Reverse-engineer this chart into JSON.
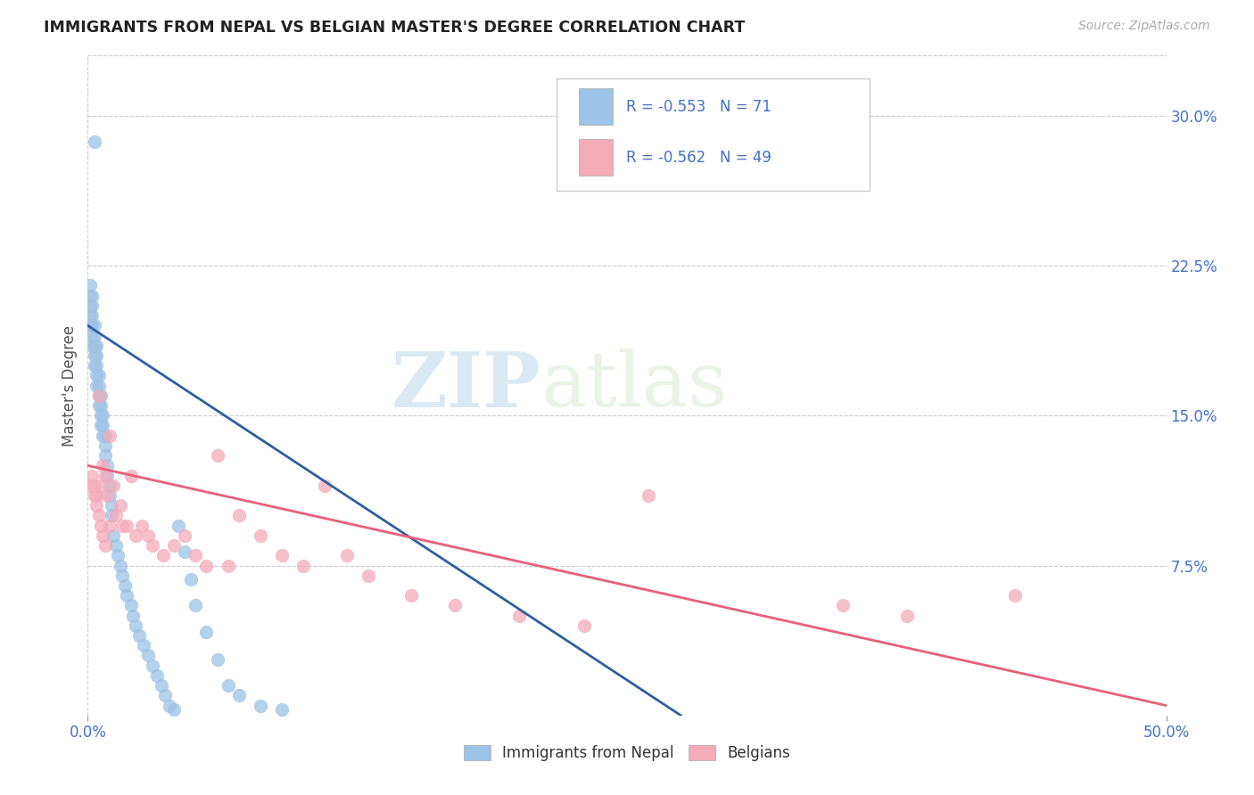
{
  "title": "IMMIGRANTS FROM NEPAL VS BELGIAN MASTER'S DEGREE CORRELATION CHART",
  "source": "Source: ZipAtlas.com",
  "ylabel": "Master's Degree",
  "right_yticks": [
    "7.5%",
    "15.0%",
    "22.5%",
    "30.0%"
  ],
  "right_ytick_vals": [
    0.075,
    0.15,
    0.225,
    0.3
  ],
  "xlim": [
    0.0,
    0.5
  ],
  "ylim": [
    0.0,
    0.33
  ],
  "legend_r_blue": "R = -0.553",
  "legend_n_blue": "N = 71",
  "legend_r_pink": "R = -0.562",
  "legend_n_pink": "N = 49",
  "legend_label_blue": "Immigrants from Nepal",
  "legend_label_pink": "Belgians",
  "color_blue": "#9DC3E6",
  "color_pink": "#F4ABBA",
  "color_blue_line": "#2E5FA3",
  "color_pink_line": "#E8607A",
  "color_blue_text": "#4472C4",
  "color_right_axis": "#4472C4",
  "watermark_zip": "ZIP",
  "watermark_atlas": "atlas",
  "blue_trend_x0": 0.0,
  "blue_trend_y0": 0.195,
  "blue_trend_x1": 0.275,
  "blue_trend_y1": 0.0,
  "pink_trend_x0": 0.0,
  "pink_trend_y0": 0.125,
  "pink_trend_x1": 0.5,
  "pink_trend_y1": 0.005,
  "blue_x": [
    0.001,
    0.001,
    0.001,
    0.001,
    0.001,
    0.002,
    0.002,
    0.002,
    0.002,
    0.002,
    0.002,
    0.003,
    0.003,
    0.003,
    0.003,
    0.003,
    0.004,
    0.004,
    0.004,
    0.004,
    0.004,
    0.005,
    0.005,
    0.005,
    0.005,
    0.006,
    0.006,
    0.006,
    0.006,
    0.007,
    0.007,
    0.007,
    0.008,
    0.008,
    0.008,
    0.009,
    0.009,
    0.01,
    0.01,
    0.011,
    0.011,
    0.012,
    0.013,
    0.014,
    0.015,
    0.016,
    0.017,
    0.018,
    0.02,
    0.021,
    0.022,
    0.024,
    0.026,
    0.028,
    0.03,
    0.032,
    0.034,
    0.036,
    0.038,
    0.04,
    0.042,
    0.045,
    0.048,
    0.05,
    0.055,
    0.06,
    0.065,
    0.07,
    0.08,
    0.09,
    0.003
  ],
  "blue_y": [
    0.195,
    0.2,
    0.205,
    0.21,
    0.215,
    0.185,
    0.19,
    0.195,
    0.2,
    0.205,
    0.21,
    0.175,
    0.18,
    0.185,
    0.19,
    0.195,
    0.165,
    0.17,
    0.175,
    0.18,
    0.185,
    0.155,
    0.16,
    0.165,
    0.17,
    0.145,
    0.15,
    0.155,
    0.16,
    0.14,
    0.145,
    0.15,
    0.13,
    0.135,
    0.14,
    0.12,
    0.125,
    0.11,
    0.115,
    0.1,
    0.105,
    0.09,
    0.085,
    0.08,
    0.075,
    0.07,
    0.065,
    0.06,
    0.055,
    0.05,
    0.045,
    0.04,
    0.035,
    0.03,
    0.025,
    0.02,
    0.015,
    0.01,
    0.005,
    0.003,
    0.095,
    0.082,
    0.068,
    0.055,
    0.042,
    0.028,
    0.015,
    0.01,
    0.005,
    0.003,
    0.287
  ],
  "pink_x": [
    0.001,
    0.002,
    0.003,
    0.003,
    0.004,
    0.004,
    0.005,
    0.005,
    0.006,
    0.006,
    0.007,
    0.007,
    0.008,
    0.008,
    0.009,
    0.01,
    0.01,
    0.012,
    0.013,
    0.015,
    0.016,
    0.018,
    0.02,
    0.022,
    0.025,
    0.028,
    0.03,
    0.035,
    0.04,
    0.045,
    0.05,
    0.055,
    0.06,
    0.065,
    0.07,
    0.08,
    0.09,
    0.1,
    0.11,
    0.12,
    0.13,
    0.15,
    0.17,
    0.2,
    0.23,
    0.26,
    0.35,
    0.38,
    0.43
  ],
  "pink_y": [
    0.115,
    0.12,
    0.11,
    0.115,
    0.105,
    0.11,
    0.1,
    0.16,
    0.095,
    0.115,
    0.09,
    0.125,
    0.085,
    0.12,
    0.11,
    0.095,
    0.14,
    0.115,
    0.1,
    0.105,
    0.095,
    0.095,
    0.12,
    0.09,
    0.095,
    0.09,
    0.085,
    0.08,
    0.085,
    0.09,
    0.08,
    0.075,
    0.13,
    0.075,
    0.1,
    0.09,
    0.08,
    0.075,
    0.115,
    0.08,
    0.07,
    0.06,
    0.055,
    0.05,
    0.045,
    0.11,
    0.055,
    0.05,
    0.06
  ]
}
